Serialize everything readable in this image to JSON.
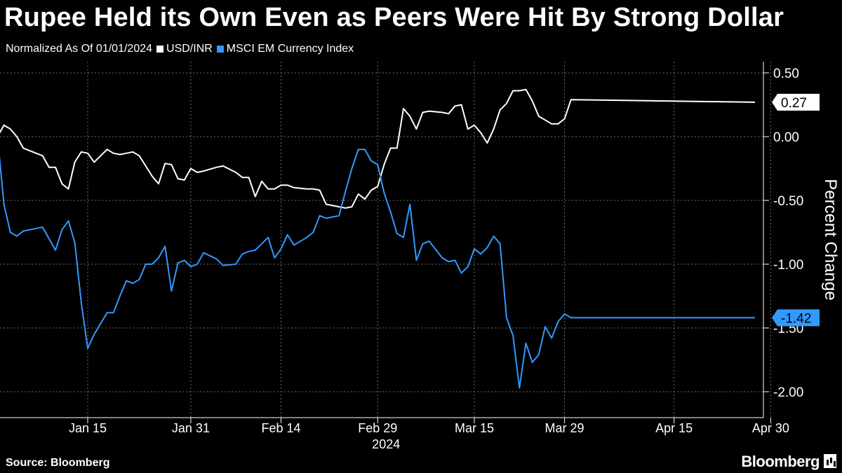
{
  "header": {
    "title": "Rupee Held its Own Even as Peers Were Hit By Strong Dollar",
    "subtitle": "Normalized As Of 01/01/2024"
  },
  "footer": {
    "source": "Source: Bloomberg",
    "brand": "Bloomberg"
  },
  "colors": {
    "background": "#000000",
    "usd_inr": "#ffffff",
    "msci_em": "#3399ff"
  },
  "chart_data": {
    "type": "line",
    "ylabel": "Percent Change",
    "ylim": [
      -2.2,
      0.6
    ],
    "grid": true,
    "y_axis_side": "right",
    "y_ticks": [
      "0.50",
      "0.00",
      "-0.50",
      "-1.00",
      "-1.50",
      "-2.00"
    ],
    "y_tick_values": [
      0.5,
      0.0,
      -0.5,
      -1.0,
      -1.5,
      -2.0
    ],
    "x_ticks": [
      "Jan 15",
      "Jan 31",
      "Feb 14",
      "Feb 29",
      "Mar 15",
      "Mar 29",
      "Apr 15",
      "Apr 30"
    ],
    "x_tick_dates": [
      "2024-01-15",
      "2024-01-31",
      "2024-02-14",
      "2024-02-29",
      "2024-03-15",
      "2024-03-29",
      "2024-04-15",
      "2024-04-30"
    ],
    "x_year_label": "2024",
    "x_range": [
      "2024-01-01",
      "2024-05-01"
    ],
    "series": [
      {
        "name": "USD/INR",
        "end_label": "0.27",
        "points": [
          [
            "2024-01-01",
            0.0
          ],
          [
            "2024-01-02",
            0.09
          ],
          [
            "2024-01-03",
            0.06
          ],
          [
            "2024-01-04",
            0.0
          ],
          [
            "2024-01-05",
            -0.09
          ],
          [
            "2024-01-08",
            -0.15
          ],
          [
            "2024-01-09",
            -0.24
          ],
          [
            "2024-01-10",
            -0.24
          ],
          [
            "2024-01-11",
            -0.37
          ],
          [
            "2024-01-12",
            -0.41
          ],
          [
            "2024-01-13",
            -0.2
          ],
          [
            "2024-01-14",
            -0.12
          ],
          [
            "2024-01-15",
            -0.13
          ],
          [
            "2024-01-16",
            -0.2
          ],
          [
            "2024-01-18",
            -0.1
          ],
          [
            "2024-01-19",
            -0.13
          ],
          [
            "2024-01-20",
            -0.14
          ],
          [
            "2024-01-21",
            -0.13
          ],
          [
            "2024-01-22",
            -0.12
          ],
          [
            "2024-01-23",
            -0.15
          ],
          [
            "2024-01-24",
            -0.23
          ],
          [
            "2024-01-25",
            -0.31
          ],
          [
            "2024-01-26",
            -0.37
          ],
          [
            "2024-01-27",
            -0.21
          ],
          [
            "2024-01-28",
            -0.22
          ],
          [
            "2024-01-29",
            -0.33
          ],
          [
            "2024-01-30",
            -0.34
          ],
          [
            "2024-01-31",
            -0.25
          ],
          [
            "2024-02-01",
            -0.28
          ],
          [
            "2024-02-02",
            -0.27
          ],
          [
            "2024-02-04",
            -0.24
          ],
          [
            "2024-02-05",
            -0.23
          ],
          [
            "2024-02-07",
            -0.28
          ],
          [
            "2024-02-08",
            -0.32
          ],
          [
            "2024-02-09",
            -0.32
          ],
          [
            "2024-02-10",
            -0.47
          ],
          [
            "2024-02-11",
            -0.35
          ],
          [
            "2024-02-12",
            -0.41
          ],
          [
            "2024-02-13",
            -0.41
          ],
          [
            "2024-02-14",
            -0.38
          ],
          [
            "2024-02-15",
            -0.38
          ],
          [
            "2024-02-16",
            -0.4
          ],
          [
            "2024-02-18",
            -0.41
          ],
          [
            "2024-02-19",
            -0.41
          ],
          [
            "2024-02-20",
            -0.42
          ],
          [
            "2024-02-21",
            -0.53
          ],
          [
            "2024-02-23",
            -0.55
          ],
          [
            "2024-02-24",
            -0.56
          ],
          [
            "2024-02-25",
            -0.55
          ],
          [
            "2024-02-26",
            -0.45
          ],
          [
            "2024-02-27",
            -0.49
          ],
          [
            "2024-02-28",
            -0.42
          ],
          [
            "2024-02-29",
            -0.39
          ],
          [
            "2024-03-01",
            -0.22
          ],
          [
            "2024-03-02",
            -0.09
          ],
          [
            "2024-03-03",
            -0.09
          ],
          [
            "2024-03-04",
            0.22
          ],
          [
            "2024-03-05",
            0.16
          ],
          [
            "2024-03-06",
            0.06
          ],
          [
            "2024-03-07",
            0.19
          ],
          [
            "2024-03-08",
            0.2
          ],
          [
            "2024-03-10",
            0.19
          ],
          [
            "2024-03-11",
            0.18
          ],
          [
            "2024-03-12",
            0.24
          ],
          [
            "2024-03-13",
            0.25
          ],
          [
            "2024-03-14",
            0.06
          ],
          [
            "2024-03-15",
            0.09
          ],
          [
            "2024-03-16",
            0.03
          ],
          [
            "2024-03-17",
            -0.05
          ],
          [
            "2024-03-18",
            0.06
          ],
          [
            "2024-03-19",
            0.21
          ],
          [
            "2024-03-20",
            0.26
          ],
          [
            "2024-03-21",
            0.36
          ],
          [
            "2024-03-22",
            0.36
          ],
          [
            "2024-03-23",
            0.37
          ],
          [
            "2024-03-24",
            0.28
          ],
          [
            "2024-03-25",
            0.16
          ],
          [
            "2024-03-26",
            0.13
          ],
          [
            "2024-03-27",
            0.1
          ],
          [
            "2024-03-28",
            0.1
          ],
          [
            "2024-03-29",
            0.14
          ],
          [
            "2024-03-30",
            0.29
          ],
          [
            "2024-04-30",
            0.27
          ]
        ]
      },
      {
        "name": "MSCI EM Currency Index",
        "end_label": "-1.42",
        "points": [
          [
            "2024-01-01",
            0.0
          ],
          [
            "2024-01-02",
            -0.53
          ],
          [
            "2024-01-03",
            -0.75
          ],
          [
            "2024-01-04",
            -0.78
          ],
          [
            "2024-01-05",
            -0.74
          ],
          [
            "2024-01-08",
            -0.71
          ],
          [
            "2024-01-09",
            -0.8
          ],
          [
            "2024-01-10",
            -0.89
          ],
          [
            "2024-01-11",
            -0.73
          ],
          [
            "2024-01-12",
            -0.66
          ],
          [
            "2024-01-13",
            -0.83
          ],
          [
            "2024-01-14",
            -1.3
          ],
          [
            "2024-01-15",
            -1.66
          ],
          [
            "2024-01-16",
            -1.55
          ],
          [
            "2024-01-18",
            -1.38
          ],
          [
            "2024-01-19",
            -1.38
          ],
          [
            "2024-01-20",
            -1.25
          ],
          [
            "2024-01-21",
            -1.13
          ],
          [
            "2024-01-22",
            -1.15
          ],
          [
            "2024-01-23",
            -1.12
          ],
          [
            "2024-01-24",
            -1.0
          ],
          [
            "2024-01-25",
            -1.0
          ],
          [
            "2024-01-26",
            -0.95
          ],
          [
            "2024-01-27",
            -0.86
          ],
          [
            "2024-01-28",
            -1.21
          ],
          [
            "2024-01-29",
            -0.99
          ],
          [
            "2024-01-30",
            -0.97
          ],
          [
            "2024-01-31",
            -1.02
          ],
          [
            "2024-02-01",
            -1.0
          ],
          [
            "2024-02-02",
            -0.91
          ],
          [
            "2024-02-04",
            -0.96
          ],
          [
            "2024-02-05",
            -1.01
          ],
          [
            "2024-02-07",
            -1.0
          ],
          [
            "2024-02-08",
            -0.92
          ],
          [
            "2024-02-09",
            -0.9
          ],
          [
            "2024-02-10",
            -0.89
          ],
          [
            "2024-02-11",
            -0.84
          ],
          [
            "2024-02-12",
            -0.79
          ],
          [
            "2024-02-13",
            -0.95
          ],
          [
            "2024-02-14",
            -0.88
          ],
          [
            "2024-02-15",
            -0.77
          ],
          [
            "2024-02-16",
            -0.85
          ],
          [
            "2024-02-18",
            -0.79
          ],
          [
            "2024-02-19",
            -0.75
          ],
          [
            "2024-02-20",
            -0.62
          ],
          [
            "2024-02-21",
            -0.64
          ],
          [
            "2024-02-23",
            -0.62
          ],
          [
            "2024-02-24",
            -0.43
          ],
          [
            "2024-02-25",
            -0.25
          ],
          [
            "2024-02-26",
            -0.1
          ],
          [
            "2024-02-27",
            -0.1
          ],
          [
            "2024-02-28",
            -0.19
          ],
          [
            "2024-02-29",
            -0.22
          ],
          [
            "2024-03-01",
            -0.44
          ],
          [
            "2024-03-02",
            -0.59
          ],
          [
            "2024-03-03",
            -0.76
          ],
          [
            "2024-03-04",
            -0.79
          ],
          [
            "2024-03-05",
            -0.53
          ],
          [
            "2024-03-06",
            -0.97
          ],
          [
            "2024-03-07",
            -0.84
          ],
          [
            "2024-03-08",
            -0.82
          ],
          [
            "2024-03-10",
            -0.95
          ],
          [
            "2024-03-11",
            -0.98
          ],
          [
            "2024-03-12",
            -0.97
          ],
          [
            "2024-03-13",
            -1.07
          ],
          [
            "2024-03-14",
            -1.02
          ],
          [
            "2024-03-15",
            -0.88
          ],
          [
            "2024-03-16",
            -0.92
          ],
          [
            "2024-03-17",
            -0.87
          ],
          [
            "2024-03-18",
            -0.78
          ],
          [
            "2024-03-19",
            -0.84
          ],
          [
            "2024-03-20",
            -1.42
          ],
          [
            "2024-03-21",
            -1.56
          ],
          [
            "2024-03-22",
            -1.97
          ],
          [
            "2024-03-23",
            -1.62
          ],
          [
            "2024-03-24",
            -1.77
          ],
          [
            "2024-03-25",
            -1.71
          ],
          [
            "2024-03-26",
            -1.49
          ],
          [
            "2024-03-27",
            -1.58
          ],
          [
            "2024-03-28",
            -1.45
          ],
          [
            "2024-03-29",
            -1.39
          ],
          [
            "2024-03-30",
            -1.42
          ],
          [
            "2024-04-30",
            -1.42
          ]
        ]
      }
    ]
  }
}
